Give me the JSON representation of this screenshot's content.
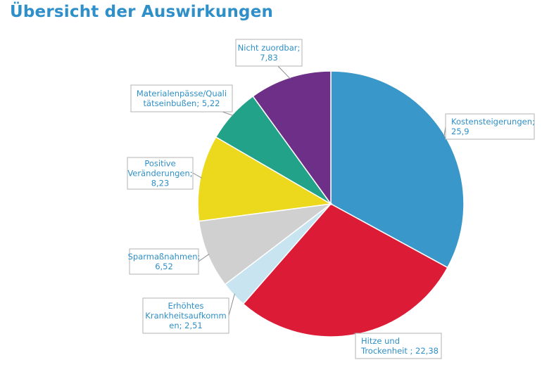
{
  "title": "Übersicht der Auswirkungen",
  "chart_data": {
    "type": "pie",
    "title": "Übersicht der Auswirkungen",
    "start_angle_deg": 0,
    "direction": "clockwise",
    "slices": [
      {
        "label": "Kostensteigerungen",
        "value": 25.9,
        "color": "#3a97c9",
        "text_lines": [
          "Kostensteigerungen;",
          "25,9"
        ]
      },
      {
        "label": "Hitze und Trockenheit",
        "value": 22.38,
        "color": "#dc1c37",
        "text_lines": [
          "Hitze und",
          "Trockenheit ; 22,38"
        ]
      },
      {
        "label": "Erhöhtes Krankheitsaufkommen",
        "value": 2.51,
        "color": "#c7e4f0",
        "text_lines": [
          "Erhöhtes",
          "Krankheitsaufkomm",
          "en; 2,51"
        ]
      },
      {
        "label": "Sparmaßnahmen",
        "value": 6.52,
        "color": "#cfd0cf",
        "text_lines": [
          "Sparmaßnahmen;",
          "6,52"
        ]
      },
      {
        "label": "Positive Veränderungen",
        "value": 8.23,
        "color": "#ecd81c",
        "text_lines": [
          "Positive",
          "Veränderungen;",
          "8,23"
        ]
      },
      {
        "label": "Materialenpässe/Qualitätseinbußen",
        "value": 5.22,
        "color": "#22a288",
        "text_lines": [
          "Materialenpässe/Quali",
          "tätseinbußen; 5,22"
        ]
      },
      {
        "label": "Nicht zuordbar",
        "value": 7.83,
        "color": "#6d2f87",
        "text_lines": [
          "Nicht zuordbar;",
          "7,83"
        ]
      }
    ]
  }
}
